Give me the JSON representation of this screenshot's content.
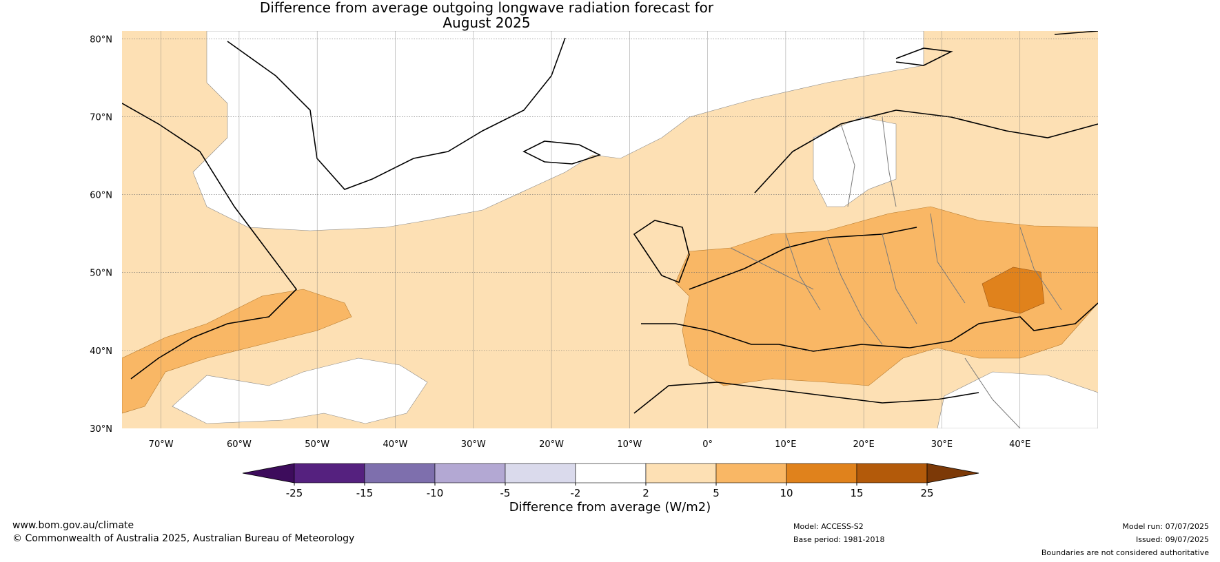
{
  "title_line1": "Difference from average outgoing longwave radiation forecast for",
  "title_line2": "August 2025",
  "map": {
    "lat_labels": [
      "80°N",
      "70°N",
      "60°N",
      "50°N",
      "40°N",
      "30°N"
    ],
    "lon_labels": [
      "70°W",
      "60°W",
      "50°W",
      "40°W",
      "30°W",
      "20°W",
      "10°W",
      "0°",
      "10°E",
      "20°E",
      "30°E",
      "40°E"
    ],
    "lat_range": [
      30,
      81
    ],
    "lon_range": [
      -75,
      50
    ],
    "colors": {
      "band_2_5": "#fde0b4",
      "band_5_10": "#f9b765",
      "band_10_15": "#e0821c",
      "land_outline": "#000000",
      "border": "#7a7a7a"
    }
  },
  "colorbar": {
    "ticks": [
      "-25",
      "-15",
      "-10",
      "-5",
      "-2",
      "2",
      "5",
      "10",
      "15",
      "25"
    ],
    "colors": [
      "#3d0c5c",
      "#55217f",
      "#7e6fad",
      "#b3a8d3",
      "#dadaec",
      "#ffffff",
      "#fde0b4",
      "#f9b765",
      "#e0821c",
      "#b35a0a",
      "#7c3907"
    ],
    "label": "Difference from average (W/m2)"
  },
  "footer": {
    "website": "www.bom.gov.au/climate",
    "copyright": "© Commonwealth of Australia 2025, Australian Bureau of Meteorology",
    "model": "Model: ACCESS-S2",
    "base_period": "Base period: 1981-2018",
    "model_run": "Model run: 07/07/2025",
    "issued": "Issued: 09/07/2025",
    "disclaimer": "Boundaries are not considered authoritative"
  }
}
